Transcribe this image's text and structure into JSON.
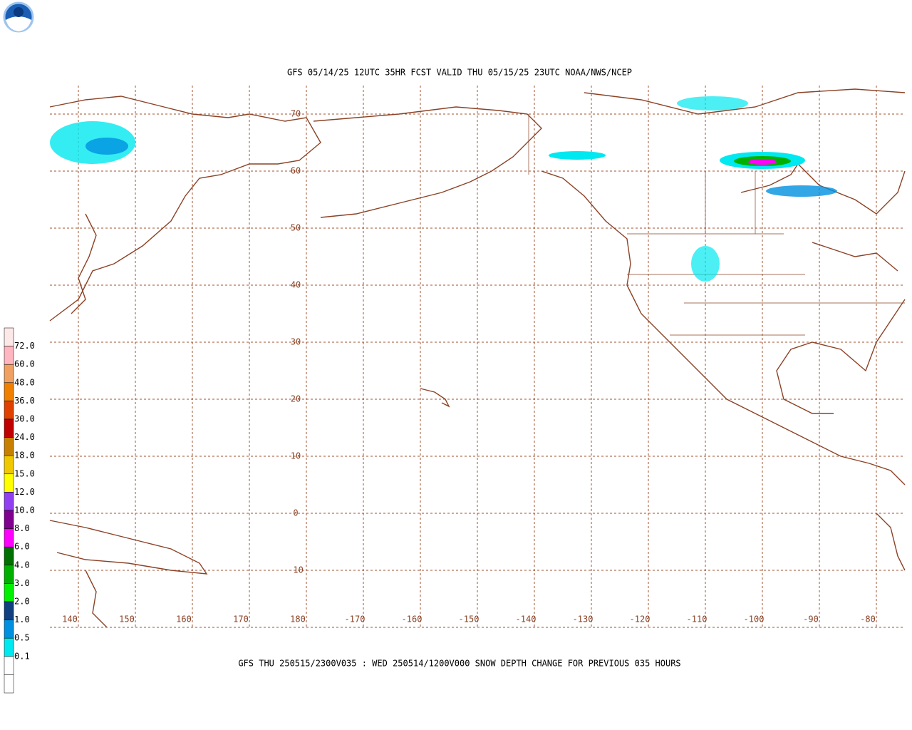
{
  "header": {
    "title": "GFS 05/14/25 12UTC 35HR FCST VALID THU 05/15/25 23UTC NOAA/NWS/NCEP",
    "caption": "GFS THU 250515/2300V035 : WED 250514/1200V000 SNOW DEPTH CHANGE FOR PREVIOUS 035 HOURS"
  },
  "map": {
    "lat_labels": [
      "70",
      "60",
      "50",
      "40",
      "30",
      "20",
      "10",
      "0",
      "-10"
    ],
    "lon_labels": [
      "140",
      "150",
      "160",
      "170",
      "180",
      "-170",
      "-160",
      "-150",
      "-140",
      "-130",
      "-120",
      "-110",
      "-100",
      "-90",
      "-80"
    ]
  },
  "legend": {
    "labels": [
      "72.0",
      "60.0",
      "48.0",
      "36.0",
      "30.0",
      "24.0",
      "18.0",
      "15.0",
      "12.0",
      "10.0",
      "8.0",
      "6.0",
      "4.0",
      "3.0",
      "2.0",
      "1.0",
      "0.5",
      "0.1"
    ],
    "colors": [
      "#fde8e8",
      "#ffb6c1",
      "#f0a060",
      "#f08000",
      "#e04000",
      "#c00000",
      "#c88000",
      "#f0c800",
      "#ffff00",
      "#9040f0",
      "#800090",
      "#ff00ff",
      "#007000",
      "#00b000",
      "#00f000",
      "#104080",
      "#0090e0",
      "#00e8f0",
      "#ffffff"
    ]
  }
}
